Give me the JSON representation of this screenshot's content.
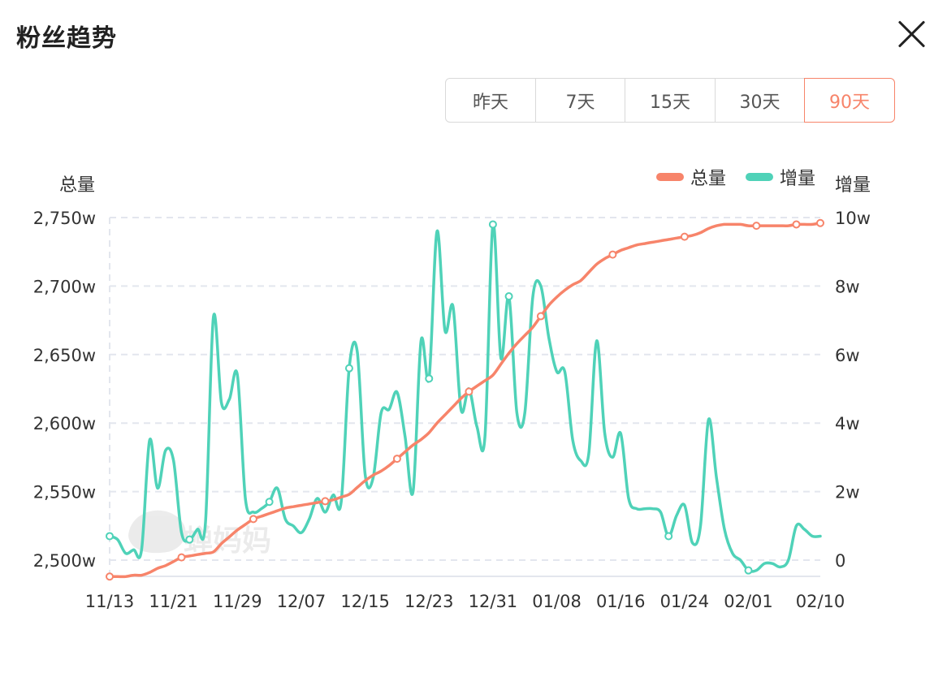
{
  "header": {
    "title": "粉丝趋势",
    "close_icon": "close-icon"
  },
  "range_tabs": [
    {
      "label": "昨天",
      "active": false
    },
    {
      "label": "7天",
      "active": false
    },
    {
      "label": "15天",
      "active": false
    },
    {
      "label": "30天",
      "active": false
    },
    {
      "label": "90天",
      "active": true
    }
  ],
  "watermark": "蝉妈妈",
  "chart_data": {
    "type": "line",
    "xlabel": "",
    "y_left_label": "总量",
    "y_right_label": "增量",
    "y_left_ticks": [
      "2,500w",
      "2,550w",
      "2,600w",
      "2,650w",
      "2,700w",
      "2,750w"
    ],
    "y_right_ticks": [
      "0",
      "2w",
      "4w",
      "6w",
      "8w",
      "10w"
    ],
    "y_left_lim": [
      2500,
      2750
    ],
    "y_right_lim": [
      0,
      10
    ],
    "x_tick_labels": [
      "11/13",
      "11/21",
      "11/29",
      "12/07",
      "12/15",
      "12/23",
      "12/31",
      "01/08",
      "01/16",
      "01/24",
      "02/01",
      "02/10"
    ],
    "x_tick_index": [
      0,
      8,
      16,
      24,
      32,
      40,
      48,
      56,
      64,
      72,
      80,
      89
    ],
    "grid": true,
    "legend_position": "top-right",
    "colors": {
      "total": "#f7846a",
      "increment": "#4fd2b8"
    },
    "series": [
      {
        "name": "总量",
        "axis": "left",
        "unit": "万",
        "values": [
          2488,
          2488,
          2488,
          2489,
          2489,
          2491,
          2494,
          2496,
          2499,
          2502,
          2503,
          2504,
          2505,
          2506,
          2512,
          2517,
          2522,
          2526,
          2530,
          2532,
          2534,
          2536,
          2538,
          2539,
          2540,
          2541,
          2542,
          2543,
          2544,
          2546,
          2548,
          2553,
          2558,
          2562,
          2565,
          2569,
          2574,
          2579,
          2584,
          2588,
          2593,
          2600,
          2606,
          2612,
          2618,
          2623,
          2627,
          2631,
          2635,
          2643,
          2651,
          2658,
          2664,
          2670,
          2678,
          2686,
          2692,
          2697,
          2701,
          2704,
          2710,
          2716,
          2720,
          2723,
          2726,
          2728,
          2730,
          2731,
          2732,
          2733,
          2734,
          2735,
          2736,
          2737,
          2739,
          2742,
          2744,
          2745,
          2745,
          2745,
          2744,
          2744,
          2744,
          2744,
          2744,
          2744,
          2745,
          2745,
          2745,
          2746
        ]
      },
      {
        "name": "增量",
        "axis": "right",
        "unit": "万",
        "values": [
          0.7,
          0.6,
          0.2,
          0.3,
          0.3,
          3.5,
          2.1,
          3.2,
          2.9,
          0.8,
          0.6,
          0.9,
          1.1,
          7.1,
          4.6,
          4.7,
          5.4,
          1.8,
          1.4,
          1.5,
          1.7,
          2.1,
          1.2,
          1.0,
          0.8,
          1.2,
          1.8,
          1.4,
          1.9,
          1.7,
          5.6,
          6.1,
          2.5,
          2.4,
          4.3,
          4.4,
          4.9,
          3.6,
          2.0,
          6.4,
          5.3,
          9.6,
          6.7,
          7.4,
          4.4,
          5.0,
          3.9,
          3.6,
          9.8,
          5.9,
          7.7,
          4.3,
          4.3,
          7.7,
          8.0,
          6.5,
          5.5,
          5.5,
          3.5,
          2.9,
          3.1,
          6.4,
          3.7,
          3.0,
          3.7,
          1.8,
          1.5,
          1.5,
          1.5,
          1.4,
          0.7,
          1.3,
          1.6,
          0.5,
          1.0,
          4.1,
          2.4,
          0.9,
          0.2,
          0,
          -0.3,
          -0.3,
          -0.1,
          -0.1,
          -0.2,
          0,
          1.0,
          0.9,
          0.7,
          0.7
        ]
      }
    ]
  }
}
